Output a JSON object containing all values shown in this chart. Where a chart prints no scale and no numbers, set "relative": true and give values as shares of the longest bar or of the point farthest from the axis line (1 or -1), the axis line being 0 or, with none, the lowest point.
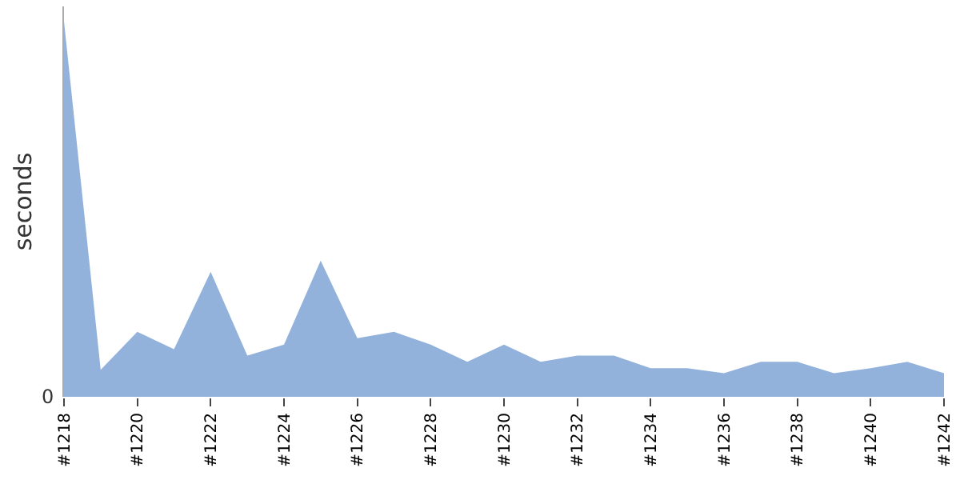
{
  "chart_data": {
    "type": "area",
    "relative": true,
    "ylabel": "seconds",
    "categories": [
      "#1218",
      null,
      "#1220",
      null,
      "#1222",
      null,
      "#1224",
      null,
      "#1226",
      null,
      "#1228",
      null,
      "#1230",
      null,
      "#1232",
      null,
      "#1234",
      null,
      "#1236",
      null,
      "#1238",
      null,
      "#1240",
      null,
      "#1242"
    ],
    "series": [
      {
        "color": "#92b2dc",
        "values": [
          1.0,
          0.072,
          0.173,
          0.127,
          0.333,
          0.11,
          0.139,
          0.363,
          0.156,
          0.173,
          0.139,
          0.093,
          0.139,
          0.093,
          0.11,
          0.11,
          0.076,
          0.076,
          0.063,
          0.093,
          0.093,
          0.063,
          0.076,
          0.093,
          0.063
        ]
      }
    ],
    "annotations": [
      "0"
    ]
  }
}
